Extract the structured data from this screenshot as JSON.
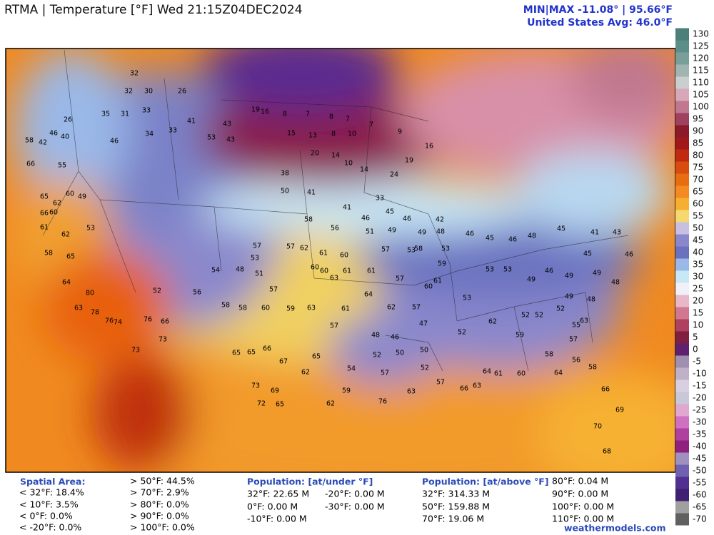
{
  "header": {
    "title": "RTMA | Temperature [°F]  Wed 21:15Z04DEC2024",
    "minmax": "MIN|MAX -11.08°  |  95.66°F",
    "avg": "United States Avg: 46.0°F"
  },
  "colorbar": {
    "labels": [
      130,
      125,
      120,
      115,
      110,
      105,
      100,
      95,
      90,
      85,
      80,
      75,
      70,
      65,
      60,
      55,
      50,
      45,
      40,
      35,
      30,
      25,
      20,
      15,
      10,
      5,
      0,
      -5,
      -10,
      -15,
      -20,
      -25,
      -30,
      -35,
      -40,
      -45,
      -50,
      -55,
      -60,
      -65,
      -70
    ],
    "colors": [
      "#4d7f7a",
      "#5c8d88",
      "#7a9e9a",
      "#a0b5b2",
      "#c9cfcf",
      "#d8a8b8",
      "#c07890",
      "#a04060",
      "#8a1a2a",
      "#a01818",
      "#c02a10",
      "#d84c10",
      "#e86c10",
      "#f58a20",
      "#f6b030",
      "#f5d870",
      "#c8c0e0",
      "#8a88cc",
      "#6a72c0",
      "#9ab8e8",
      "#c8e8f8",
      "#f0f0f8",
      "#e8b8c8",
      "#d07890",
      "#b04060",
      "#802040",
      "#602070",
      "#a090b0",
      "#c0b0c8",
      "#d8d0e0",
      "#c8c8d8",
      "#e0a8d0",
      "#d070c0",
      "#b040a0",
      "#902080",
      "#a090c0",
      "#7060b0",
      "#503090",
      "#402070",
      "#a0a0a0",
      "#606060"
    ]
  },
  "map": {
    "stations": [
      32,
      32,
      30,
      26,
      35,
      31,
      33,
      46,
      34,
      33,
      41,
      53,
      43,
      43,
      19,
      16,
      8,
      7,
      8,
      7,
      7,
      9,
      16,
      19,
      24,
      33,
      15,
      13,
      8,
      10,
      20,
      14,
      10,
      14,
      38,
      50,
      41,
      41,
      46,
      45,
      46,
      42,
      58,
      56,
      51,
      49,
      49,
      48,
      46,
      45,
      46,
      48,
      45,
      41,
      43,
      46,
      45,
      49,
      46,
      49,
      53,
      53,
      53,
      52,
      62,
      59,
      58,
      64,
      56,
      58,
      57,
      63,
      48,
      48,
      49,
      49,
      52,
      52,
      52,
      55,
      66,
      69,
      70,
      68,
      60,
      61,
      64,
      63,
      66,
      57,
      63,
      76,
      59,
      62,
      65,
      72,
      73,
      69,
      65,
      65,
      66,
      67,
      62,
      65,
      54,
      52,
      50,
      50,
      52,
      57,
      48,
      46,
      47,
      57,
      63,
      61,
      64,
      62,
      57,
      57,
      60,
      61,
      59,
      58,
      53,
      53,
      57,
      61,
      61,
      63,
      60,
      60,
      61,
      60,
      62,
      57,
      57,
      53,
      48,
      54,
      51,
      57,
      60,
      59,
      58,
      58,
      56,
      52,
      76,
      73,
      74,
      66,
      73,
      80,
      63,
      78,
      76,
      64,
      58,
      65,
      62,
      61,
      65,
      62,
      60,
      49,
      60,
      66,
      53,
      66,
      55,
      42,
      58,
      46,
      40,
      26
    ]
  },
  "footer": {
    "spatial": {
      "title": "Spatial Area:",
      "items": [
        "< 32°F: 18.4%",
        "< 10°F: 3.5%",
        "< 0°F: 0.0%",
        "< -20°F: 0.0%",
        "> 50°F: 44.5%",
        "> 70°F: 2.9%",
        "> 80°F: 0.0%",
        "> 90°F: 0.0%",
        "> 100°F: 0.0%"
      ]
    },
    "under": {
      "title": "Population: [at/under °F]",
      "items": [
        "32°F: 22.65 M",
        "-20°F: 0.00 M",
        "0°F: 0.00 M",
        "-30°F: 0.00 M",
        "-10°F: 0.00 M"
      ]
    },
    "above": {
      "title": "Population: [at/above °F]",
      "items": [
        "32°F: 314.33 M",
        "50°F: 159.88 M",
        "70°F: 19.06 M",
        "80°F: 0.04 M",
        "90°F: 0.00 M",
        "100°F: 0.00 M",
        "110°F: 0.00 M"
      ]
    },
    "watermark": "weathermodels.com"
  }
}
